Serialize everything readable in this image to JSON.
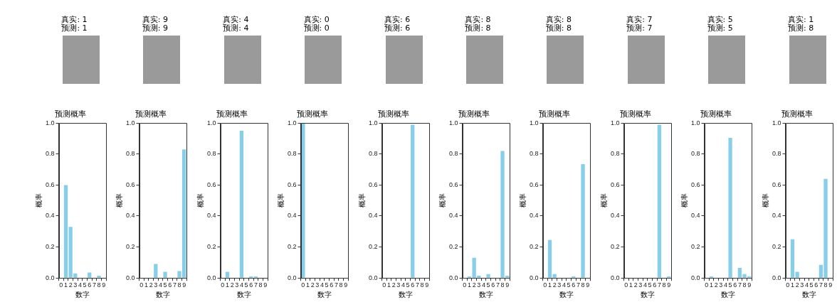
{
  "chart_data": [
    {
      "type": "bar",
      "title": "预测概率",
      "annotations": [
        "真实: 1",
        "预测: 1"
      ],
      "xlabel": "数字",
      "ylabel": "概率",
      "categories": [
        "0",
        "1",
        "2",
        "3",
        "4",
        "5",
        "6",
        "7",
        "8",
        "9"
      ],
      "values": [
        0,
        0.6,
        0.33,
        0.03,
        0,
        0,
        0.035,
        0,
        0.015,
        0
      ],
      "color": "#87ceeb",
      "ylim": [
        0,
        1
      ],
      "yticks": [
        {
          "value": 0,
          "label": "0.0"
        },
        {
          "value": 0.2,
          "label": "0.2"
        },
        {
          "value": 0.4,
          "label": "0.4"
        },
        {
          "value": 0.6,
          "label": "0.6"
        },
        {
          "value": 0.8,
          "label": "0.8"
        },
        {
          "value": 1,
          "label": "1.0"
        }
      ],
      "grid": false
    },
    {
      "type": "bar",
      "title": "预测概率",
      "annotations": [
        "真实: 9",
        "预测: 9"
      ],
      "xlabel": "数字",
      "ylabel": "概率",
      "categories": [
        "0",
        "1",
        "2",
        "3",
        "4",
        "5",
        "6",
        "7",
        "8",
        "9"
      ],
      "values": [
        0,
        0,
        0,
        0.09,
        0,
        0.04,
        0,
        0,
        0.045,
        0.83
      ],
      "color": "#87ceeb",
      "ylim": [
        0,
        1
      ],
      "yticks": [
        {
          "value": 0,
          "label": "0.0"
        },
        {
          "value": 0.2,
          "label": "0.2"
        },
        {
          "value": 0.4,
          "label": "0.4"
        },
        {
          "value": 0.6,
          "label": "0.6"
        },
        {
          "value": 0.8,
          "label": "0.8"
        },
        {
          "value": 1,
          "label": "1.0"
        }
      ],
      "grid": false
    },
    {
      "type": "bar",
      "title": "预测概率",
      "annotations": [
        "真实: 4",
        "预测: 4"
      ],
      "xlabel": "数字",
      "ylabel": "概率",
      "categories": [
        "0",
        "1",
        "2",
        "3",
        "4",
        "5",
        "6",
        "7",
        "8",
        "9"
      ],
      "values": [
        0,
        0.04,
        0,
        0,
        0.95,
        0,
        0.01,
        0.01,
        0,
        0
      ],
      "color": "#87ceeb",
      "ylim": [
        0,
        1
      ],
      "yticks": [
        {
          "value": 0,
          "label": "0.0"
        },
        {
          "value": 0.2,
          "label": "0.2"
        },
        {
          "value": 0.4,
          "label": "0.4"
        },
        {
          "value": 0.6,
          "label": "0.6"
        },
        {
          "value": 0.8,
          "label": "0.8"
        },
        {
          "value": 1,
          "label": "1.0"
        }
      ],
      "grid": false
    },
    {
      "type": "bar",
      "title": "预测概率",
      "annotations": [
        "真实: 0",
        "预测: 0"
      ],
      "xlabel": "数字",
      "ylabel": "概率",
      "categories": [
        "0",
        "1",
        "2",
        "3",
        "4",
        "5",
        "6",
        "7",
        "8",
        "9"
      ],
      "values": [
        1,
        0,
        0,
        0,
        0,
        0,
        0,
        0,
        0,
        0
      ],
      "color": "#87ceeb",
      "ylim": [
        0,
        1
      ],
      "yticks": [
        {
          "value": 0,
          "label": "0.0"
        },
        {
          "value": 0.2,
          "label": "0.2"
        },
        {
          "value": 0.4,
          "label": "0.4"
        },
        {
          "value": 0.6,
          "label": "0.6"
        },
        {
          "value": 0.8,
          "label": "0.8"
        },
        {
          "value": 1,
          "label": "1.0"
        }
      ],
      "grid": false
    },
    {
      "type": "bar",
      "title": "预测概率",
      "annotations": [
        "真实: 6",
        "预测: 6"
      ],
      "xlabel": "数字",
      "ylabel": "概率",
      "categories": [
        "0",
        "1",
        "2",
        "3",
        "4",
        "5",
        "6",
        "7",
        "8",
        "9"
      ],
      "values": [
        0,
        0,
        0,
        0,
        0,
        0,
        0.99,
        0,
        0,
        0
      ],
      "color": "#87ceeb",
      "ylim": [
        0,
        1
      ],
      "yticks": [
        {
          "value": 0,
          "label": "0.0"
        },
        {
          "value": 0.2,
          "label": "0.2"
        },
        {
          "value": 0.4,
          "label": "0.4"
        },
        {
          "value": 0.6,
          "label": "0.6"
        },
        {
          "value": 0.8,
          "label": "0.8"
        },
        {
          "value": 1,
          "label": "1.0"
        }
      ],
      "grid": false
    },
    {
      "type": "bar",
      "title": "预测概率",
      "annotations": [
        "真实: 8",
        "预测: 8"
      ],
      "xlabel": "数字",
      "ylabel": "概率",
      "categories": [
        "0",
        "1",
        "2",
        "3",
        "4",
        "5",
        "6",
        "7",
        "8",
        "9"
      ],
      "values": [
        0,
        0.01,
        0.13,
        0.015,
        0,
        0.025,
        0,
        0,
        0.82,
        0.015
      ],
      "color": "#87ceeb",
      "ylim": [
        0,
        1
      ],
      "yticks": [
        {
          "value": 0,
          "label": "0.0"
        },
        {
          "value": 0.2,
          "label": "0.2"
        },
        {
          "value": 0.4,
          "label": "0.4"
        },
        {
          "value": 0.6,
          "label": "0.6"
        },
        {
          "value": 0.8,
          "label": "0.8"
        },
        {
          "value": 1,
          "label": "1.0"
        }
      ],
      "grid": false
    },
    {
      "type": "bar",
      "title": "预测概率",
      "annotations": [
        "真实: 8",
        "预测: 8"
      ],
      "xlabel": "数字",
      "ylabel": "概率",
      "categories": [
        "0",
        "1",
        "2",
        "3",
        "4",
        "5",
        "6",
        "7",
        "8",
        "9"
      ],
      "values": [
        0,
        0.245,
        0.025,
        0,
        0,
        0,
        0.01,
        0,
        0.735,
        0
      ],
      "color": "#87ceeb",
      "ylim": [
        0,
        1
      ],
      "yticks": [
        {
          "value": 0,
          "label": "0.0"
        },
        {
          "value": 0.2,
          "label": "0.2"
        },
        {
          "value": 0.4,
          "label": "0.4"
        },
        {
          "value": 0.6,
          "label": "0.6"
        },
        {
          "value": 0.8,
          "label": "0.8"
        },
        {
          "value": 1,
          "label": "1.0"
        }
      ],
      "grid": false
    },
    {
      "type": "bar",
      "title": "预测概率",
      "annotations": [
        "真实: 7",
        "预测: 7"
      ],
      "xlabel": "数字",
      "ylabel": "概率",
      "categories": [
        "0",
        "1",
        "2",
        "3",
        "4",
        "5",
        "6",
        "7",
        "8",
        "9"
      ],
      "values": [
        0,
        0,
        0,
        0,
        0,
        0,
        0,
        0.99,
        0,
        0.01
      ],
      "color": "#87ceeb",
      "ylim": [
        0,
        1
      ],
      "yticks": [
        {
          "value": 0,
          "label": "0.0"
        },
        {
          "value": 0.2,
          "label": "0.2"
        },
        {
          "value": 0.4,
          "label": "0.4"
        },
        {
          "value": 0.6,
          "label": "0.6"
        },
        {
          "value": 0.8,
          "label": "0.8"
        },
        {
          "value": 1,
          "label": "1.0"
        }
      ],
      "grid": false
    },
    {
      "type": "bar",
      "title": "预测概率",
      "annotations": [
        "真实: 5",
        "预测: 5"
      ],
      "xlabel": "数字",
      "ylabel": "概率",
      "categories": [
        "0",
        "1",
        "2",
        "3",
        "4",
        "5",
        "6",
        "7",
        "8",
        "9"
      ],
      "values": [
        0,
        0.01,
        0,
        0,
        0,
        0.905,
        0,
        0.065,
        0.025,
        0.01
      ],
      "color": "#87ceeb",
      "ylim": [
        0,
        1
      ],
      "yticks": [
        {
          "value": 0,
          "label": "0.0"
        },
        {
          "value": 0.2,
          "label": "0.2"
        },
        {
          "value": 0.4,
          "label": "0.4"
        },
        {
          "value": 0.6,
          "label": "0.6"
        },
        {
          "value": 0.8,
          "label": "0.8"
        },
        {
          "value": 1,
          "label": "1.0"
        }
      ],
      "grid": false
    },
    {
      "type": "bar",
      "title": "预测概率",
      "annotations": [
        "真实: 1",
        "预测: 8"
      ],
      "xlabel": "数字",
      "ylabel": "概率",
      "categories": [
        "0",
        "1",
        "2",
        "3",
        "4",
        "5",
        "6",
        "7",
        "8",
        "9"
      ],
      "values": [
        0,
        0.25,
        0.04,
        0,
        0,
        0,
        0,
        0.085,
        0.64,
        0
      ],
      "color": "#87ceeb",
      "ylim": [
        0,
        1
      ],
      "yticks": [
        {
          "value": 0,
          "label": "0.0"
        },
        {
          "value": 0.2,
          "label": "0.2"
        },
        {
          "value": 0.4,
          "label": "0.4"
        },
        {
          "value": 0.6,
          "label": "0.6"
        },
        {
          "value": 0.8,
          "label": "0.8"
        },
        {
          "value": 1,
          "label": "1.0"
        }
      ],
      "grid": false
    }
  ]
}
